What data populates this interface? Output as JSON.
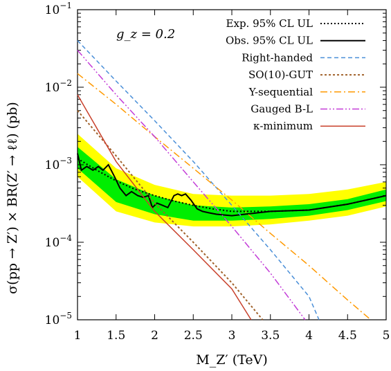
{
  "chart_data": {
    "type": "line",
    "annotation": "g_z = 0.2",
    "xlabel": "M_Z′ (TeV)",
    "ylabel": "σ(pp → Z′) × BR(Z′ → ℓℓ) (pb)",
    "xlim": [
      1,
      5
    ],
    "ylim": [
      1e-05,
      0.1
    ],
    "y_scale": "log",
    "x_ticks": [
      "1",
      "1.5",
      "2",
      "2.5",
      "3",
      "3.5",
      "4",
      "4.5",
      "5"
    ],
    "y_ticks": [
      {
        "base": "10",
        "exp": "−5",
        "value": 1e-05
      },
      {
        "base": "10",
        "exp": "−4",
        "value": 0.0001
      },
      {
        "base": "10",
        "exp": "−3",
        "value": 0.001
      },
      {
        "base": "10",
        "exp": "−2",
        "value": 0.01
      },
      {
        "base": "10",
        "exp": "−1",
        "value": 0.1
      }
    ],
    "legend_position": "top-right",
    "bands": {
      "x": [
        1.0,
        1.5,
        2.0,
        2.5,
        3.0,
        3.5,
        4.0,
        4.5,
        5.0
      ],
      "yellow_high": [
        0.0025,
        0.0009,
        0.00055,
        0.00042,
        0.0004,
        0.0004,
        0.00042,
        0.00048,
        0.0006
      ],
      "green_high": [
        0.0017,
        0.00065,
        0.0004,
        0.0003,
        0.00028,
        0.00029,
        0.00031,
        0.00036,
        0.00048
      ],
      "green_low": [
        0.0009,
        0.00033,
        0.00023,
        0.00019,
        0.00019,
        0.0002,
        0.00022,
        0.00026,
        0.00034
      ],
      "yellow_low": [
        0.0007,
        0.00025,
        0.00018,
        0.00016,
        0.00016,
        0.00017,
        0.00019,
        0.00022,
        0.00029
      ]
    },
    "series": [
      {
        "name": "Exp. 95% CL UL",
        "color": "#000000",
        "dash": "2,3",
        "width": 2,
        "x": [
          1.0,
          1.25,
          1.5,
          1.75,
          2.0,
          2.25,
          2.5,
          2.75,
          3.0,
          3.5,
          4.0,
          4.5,
          5.0
        ],
        "y": [
          0.0012,
          0.00085,
          0.00062,
          0.00048,
          0.0004,
          0.00034,
          0.0003,
          0.00027,
          0.00025,
          0.00025,
          0.00026,
          0.00031,
          0.0004
        ]
      },
      {
        "name": "Obs. 95% CL UL",
        "color": "#000000",
        "dash": "",
        "width": 2,
        "x": [
          1.0,
          1.05,
          1.12,
          1.2,
          1.27,
          1.33,
          1.4,
          1.48,
          1.55,
          1.63,
          1.7,
          1.78,
          1.85,
          1.92,
          1.97,
          2.03,
          2.1,
          2.17,
          2.25,
          2.3,
          2.35,
          2.4,
          2.47,
          2.55,
          2.62,
          2.7,
          2.8,
          3.0,
          3.5,
          4.0,
          4.5,
          5.0
        ],
        "y": [
          0.0014,
          0.00085,
          0.00095,
          0.00085,
          0.00095,
          0.00085,
          0.001,
          0.0007,
          0.0005,
          0.0004,
          0.00045,
          0.0004,
          0.00038,
          0.0004,
          0.00028,
          0.00032,
          0.0003,
          0.00028,
          0.0004,
          0.00042,
          0.0004,
          0.00042,
          0.00035,
          0.00027,
          0.00025,
          0.00024,
          0.00023,
          0.00022,
          0.00025,
          0.00026,
          0.00031,
          0.0004
        ]
      },
      {
        "name": "Right-handed",
        "color": "#4a8fd8",
        "dash": "6,4",
        "width": 1.5,
        "x": [
          1.0,
          1.5,
          2.0,
          2.5,
          3.0,
          3.5,
          4.0,
          4.13
        ],
        "y": [
          0.04,
          0.012,
          0.0037,
          0.0011,
          0.0003,
          8e-05,
          2e-05,
          1e-05
        ]
      },
      {
        "name": "SO(10)-GUT",
        "color": "#a0612a",
        "dash": "3,3",
        "width": 2,
        "x": [
          1.0,
          1.5,
          2.0,
          2.5,
          3.0,
          3.4
        ],
        "y": [
          0.005,
          0.0013,
          0.00032,
          0.0001,
          3e-05,
          1e-05
        ]
      },
      {
        "name": "Y-sequential",
        "color": "#ff9900",
        "dash": "10,4,2,4",
        "width": 1.5,
        "x": [
          1.0,
          1.5,
          2.0,
          2.5,
          3.0,
          3.5,
          4.0,
          4.5,
          4.8
        ],
        "y": [
          0.015,
          0.006,
          0.0023,
          0.0009,
          0.00035,
          0.00013,
          5e-05,
          1.8e-05,
          1e-05
        ]
      },
      {
        "name": "Gauged B-L",
        "color": "#c33cd8",
        "dash": "10,3,2,3,2,3",
        "width": 1.5,
        "x": [
          1.0,
          1.5,
          2.0,
          2.5,
          3.0,
          3.5,
          3.95
        ],
        "y": [
          0.03,
          0.008,
          0.0023,
          0.0006,
          0.00016,
          4e-05,
          1e-05
        ]
      },
      {
        "name": "κ-minimum",
        "color": "#c8402b",
        "dash": "",
        "width": 1.5,
        "x": [
          1.0,
          1.5,
          2.0,
          2.5,
          3.0,
          3.25
        ],
        "y": [
          0.008,
          0.0011,
          0.00025,
          8e-05,
          2.5e-05,
          1e-05
        ]
      }
    ]
  }
}
